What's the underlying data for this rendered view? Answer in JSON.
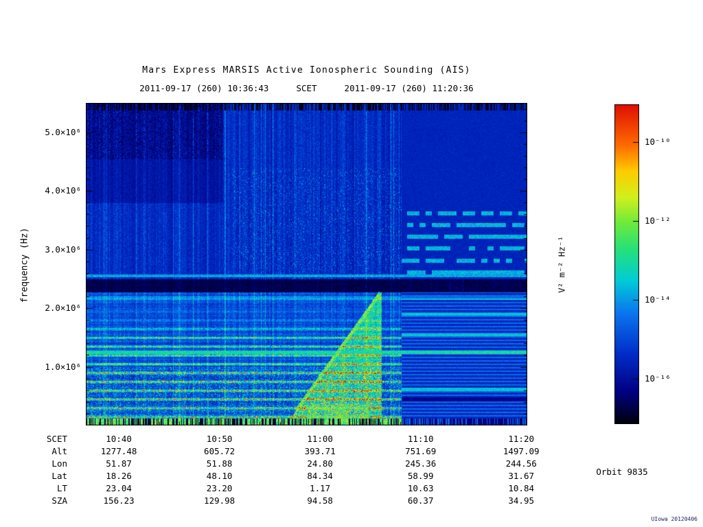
{
  "title": "Mars Express MARSIS Active Ionospheric Sounding (AIS)",
  "subtitle": {
    "start": "2011-09-17 (260) 10:36:43",
    "label": "SCET",
    "end": "2011-09-17 (260) 11:20:36"
  },
  "orbit_label": "Orbit 9835",
  "credit": "UIowa 20120406",
  "colors": {
    "background": "#ffffff",
    "text": "#000000",
    "frame": "#000000"
  },
  "chart_data": {
    "type": "heatmap",
    "title": "Mars Express MARSIS Active Ionospheric Sounding (AIS)",
    "xlabel": "SCET",
    "ylabel": "frequency (Hz)",
    "x_range_scet": [
      "10:36:43",
      "11:20:36"
    ],
    "x_range_seconds": [
      38203,
      40836
    ],
    "x_ticks": [
      {
        "scet": "10:40",
        "seconds": 38400
      },
      {
        "scet": "10:50",
        "seconds": 39000
      },
      {
        "scet": "11:00",
        "seconds": 39600
      },
      {
        "scet": "11:10",
        "seconds": 40200
      },
      {
        "scet": "11:20",
        "seconds": 40800
      }
    ],
    "x_minor_tick_seconds": 120,
    "y_range_hz": [
      0,
      5500000
    ],
    "y_ticks": [
      {
        "hz": 1000000,
        "label": "1.0×10⁶"
      },
      {
        "hz": 2000000,
        "label": "2.0×10⁶"
      },
      {
        "hz": 3000000,
        "label": "3.0×10⁶"
      },
      {
        "hz": 4000000,
        "label": "4.0×10⁶"
      },
      {
        "hz": 5000000,
        "label": "5.0×10⁶"
      }
    ],
    "y_minor_tick_hz": 200000,
    "value_units": "V² m⁻² Hz⁻¹",
    "colormap": [
      {
        "v": 0.0,
        "rgb": [
          0,
          0,
          8
        ]
      },
      {
        "v": 0.1,
        "rgb": [
          0,
          0,
          130
        ]
      },
      {
        "v": 0.22,
        "rgb": [
          0,
          45,
          200
        ]
      },
      {
        "v": 0.35,
        "rgb": [
          10,
          120,
          240
        ]
      },
      {
        "v": 0.45,
        "rgb": [
          0,
          205,
          215
        ]
      },
      {
        "v": 0.55,
        "rgb": [
          40,
          225,
          120
        ]
      },
      {
        "v": 0.63,
        "rgb": [
          110,
          235,
          60
        ]
      },
      {
        "v": 0.71,
        "rgb": [
          210,
          240,
          30
        ]
      },
      {
        "v": 0.79,
        "rgb": [
          255,
          205,
          0
        ]
      },
      {
        "v": 0.87,
        "rgb": [
          255,
          110,
          0
        ]
      },
      {
        "v": 1.0,
        "rgb": [
          225,
          15,
          0
        ]
      }
    ],
    "features": {
      "quiet_t": 0.715,
      "absorption_band_hz": [
        2280000,
        2500000
      ],
      "line_spacing_hz": 150000,
      "bright_line_hz": 1250000,
      "upper_line_hz": 2560000,
      "below_band_line_hz": 2180000,
      "echo_trace": {
        "t_start": 0.475,
        "t_end": 0.665,
        "f_start_hz": 250000,
        "f_end_hz": 2250000
      },
      "quiet_lines_mhz": [
        0.62,
        1.25,
        1.55,
        1.9,
        2.62,
        2.82,
        3.02,
        3.22,
        3.42,
        3.62
      ],
      "dark_topleft": {
        "t_max": 0.31,
        "f_min_hz": 4550000
      }
    },
    "description": "AIS radar spectrogram: blue background noise with vertical striations; dark absorption band near 2.3-2.5 MHz; harmonic plasma lines and green speckle below ~1.6 MHz; oblique ionospheric echo trace rising toward 11:00; smoother blue region with horizontal cyan lines after ~11:07"
  },
  "colorbar": {
    "label": "V² m⁻² Hz⁻¹",
    "scale": {
      "top_exponent": -9.05,
      "bottom_exponent": -17.15
    },
    "ticks": [
      {
        "label": "10⁻¹⁰",
        "exponent": -10
      },
      {
        "label": "10⁻¹²",
        "exponent": -12
      },
      {
        "label": "10⁻¹⁴",
        "exponent": -14
      },
      {
        "label": "10⁻¹⁶",
        "exponent": -16
      }
    ]
  },
  "ephemeris": {
    "rows": [
      {
        "label": "SCET",
        "values": [
          "10:40",
          "10:50",
          "11:00",
          "11:10",
          "11:20"
        ]
      },
      {
        "label": "Alt",
        "values": [
          "1277.48",
          "605.72",
          "393.71",
          "751.69",
          "1497.09"
        ]
      },
      {
        "label": "Lon",
        "values": [
          "51.87",
          "51.88",
          "24.80",
          "245.36",
          "244.56"
        ]
      },
      {
        "label": "Lat",
        "values": [
          "18.26",
          "48.10",
          "84.34",
          "58.99",
          "31.67"
        ]
      },
      {
        "label": "LT",
        "values": [
          "23.04",
          "23.20",
          "1.17",
          "10.63",
          "10.84"
        ]
      },
      {
        "label": "SZA",
        "values": [
          "156.23",
          "129.98",
          "94.58",
          "60.37",
          "34.95"
        ]
      }
    ]
  }
}
